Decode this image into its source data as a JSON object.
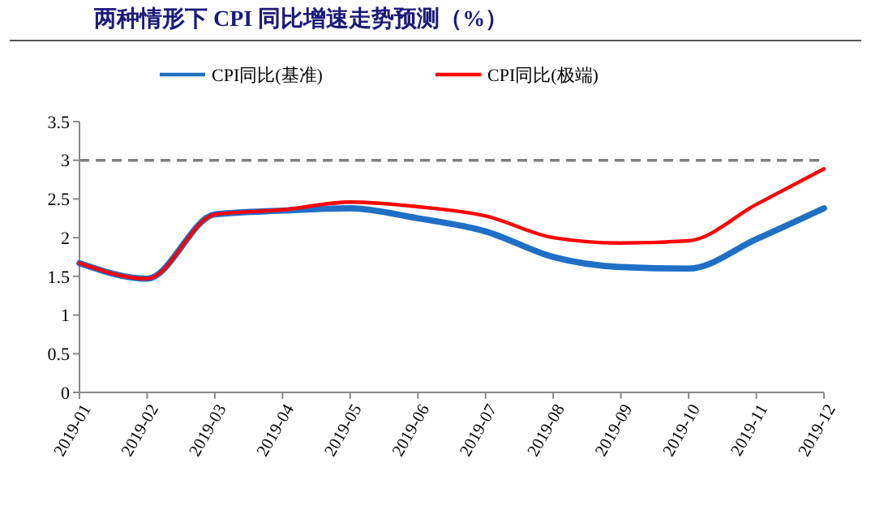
{
  "chart_data": {
    "type": "line",
    "title": "两种情形下 CPI 同比增速走势预测（%）",
    "categories": [
      "2019-01",
      "2019-02",
      "2019-03",
      "2019-04",
      "2019-05",
      "2019-06",
      "2019-07",
      "2019-08",
      "2019-09",
      "2019-10",
      "2019-11",
      "2019-12"
    ],
    "series": [
      {
        "name": "CPI同比(基准)",
        "color": "#1f6fc5",
        "values": [
          1.67,
          1.47,
          2.3,
          2.35,
          2.38,
          2.25,
          2.08,
          1.75,
          1.62,
          1.6,
          1.98,
          2.38
        ]
      },
      {
        "name": "CPI同比(极端)",
        "color": "#ff0000",
        "values": [
          1.67,
          1.47,
          2.3,
          2.36,
          2.46,
          2.4,
          2.28,
          2.0,
          1.93,
          1.96,
          2.43,
          2.89
        ]
      }
    ],
    "ylim": [
      0,
      3.5
    ],
    "yticks": [
      0,
      0.5,
      1,
      1.5,
      2,
      2.5,
      3,
      3.5
    ],
    "ref_lines": [
      {
        "axis": "y",
        "value": 3,
        "color": "#808080",
        "line_style": "dashed"
      }
    ],
    "legend": "top",
    "grid": false,
    "marker": "none",
    "line_style": "solid"
  }
}
